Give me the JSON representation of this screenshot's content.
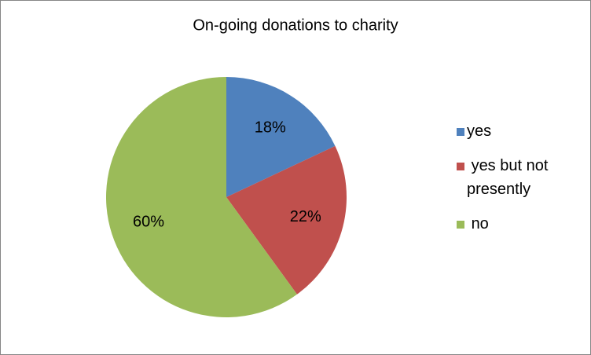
{
  "chart_data": {
    "type": "pie",
    "title": "On-going donations to charity",
    "categories": [
      "yes",
      " yes but not presently",
      " no"
    ],
    "values": [
      18,
      22,
      60
    ],
    "value_labels": [
      "18%",
      "22%",
      "60%"
    ],
    "colors": [
      "#4f81bd",
      "#c0504d",
      "#9bbb59"
    ],
    "legend": "right"
  }
}
